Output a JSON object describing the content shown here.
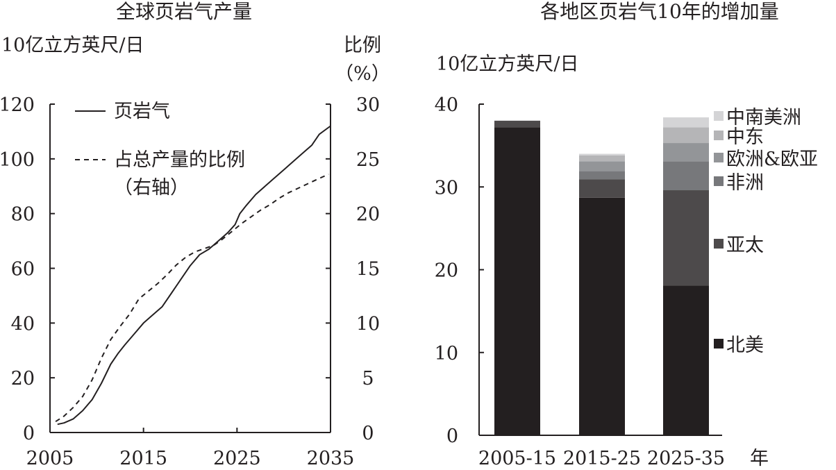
{
  "chart_data": [
    {
      "type": "line",
      "title": "全球页岩气产量",
      "ylabel": "10亿立方英尺/日",
      "y2label_line1": "比例",
      "y2label_line2": "（%）",
      "xlim": [
        2005,
        2035
      ],
      "ylim": [
        0,
        120
      ],
      "y2lim": [
        0,
        30
      ],
      "x_ticks": [
        2005,
        2015,
        2025,
        2035
      ],
      "y_ticks": [
        0,
        20,
        40,
        60,
        80,
        100,
        120
      ],
      "y2_ticks": [
        0,
        5,
        10,
        15,
        20,
        25,
        30
      ],
      "series": [
        {
          "name": "页岩气",
          "axis": "left",
          "style": "solid",
          "x": [
            2005.8,
            2006.5,
            2007.5,
            2008.5,
            2009.5,
            2010.5,
            2011.5,
            2012.3,
            2013,
            2014,
            2015,
            2016,
            2017,
            2018,
            2019,
            2020,
            2021,
            2022,
            2023,
            2024,
            2024.8,
            2025.3,
            2026,
            2027,
            2028,
            2029,
            2030,
            2031,
            2032,
            2033,
            2033.8,
            2035
          ],
          "values": [
            3,
            3.5,
            5,
            8,
            12,
            18,
            25,
            29,
            32,
            36,
            40,
            43,
            46,
            51,
            56,
            61,
            65,
            67,
            70,
            73,
            76,
            80,
            83,
            87,
            90,
            93,
            96,
            99,
            102,
            105,
            109,
            112
          ]
        },
        {
          "name": "占总产量的比例",
          "name_line2": "（右轴）",
          "axis": "right",
          "style": "dashed",
          "x": [
            2005.6,
            2006.5,
            2007.5,
            2008.5,
            2009.5,
            2010.5,
            2011.5,
            2012.5,
            2013.5,
            2014.5,
            2015.5,
            2016.5,
            2017.5,
            2018.5,
            2019.5,
            2020.5,
            2021.5,
            2022.5,
            2023.5,
            2024.5,
            2025.5,
            2026.5,
            2027.5,
            2028.5,
            2029.5,
            2030.5,
            2031.5,
            2032.5,
            2033.5,
            2034.8
          ],
          "values": [
            1,
            1.5,
            2.3,
            3.3,
            4.8,
            6.8,
            8.5,
            9.7,
            10.8,
            12.2,
            12.9,
            13.6,
            14.4,
            15.3,
            16,
            16.5,
            16.8,
            17.1,
            17.7,
            18.4,
            19.1,
            19.7,
            20.3,
            20.8,
            21.4,
            21.9,
            22.3,
            22.7,
            23.1,
            23.6
          ]
        }
      ]
    },
    {
      "type": "bar",
      "stacked": true,
      "title": "各地区页岩气10年的增加量",
      "ylabel": "10亿立方英尺/日",
      "xlabel": "年",
      "ylim": [
        0,
        40
      ],
      "y_ticks": [
        0,
        10,
        20,
        30,
        40
      ],
      "categories": [
        "2005-15",
        "2015-25",
        "2025-35"
      ],
      "series": [
        {
          "name": "北美",
          "color": "#231f20",
          "values": [
            37.2,
            28.7,
            18.1
          ]
        },
        {
          "name": "亚太",
          "color": "#4d4a4b",
          "values": [
            0.8,
            2.2,
            11.5
          ]
        },
        {
          "name": "非洲",
          "color": "#77787b",
          "values": [
            0,
            1.0,
            3.5
          ]
        },
        {
          "name": "欧洲&欧亚",
          "color": "#939598",
          "values": [
            0,
            1.2,
            2.2
          ]
        },
        {
          "name": "中东",
          "color": "#b5b5b7",
          "values": [
            0,
            0.7,
            1.9
          ]
        },
        {
          "name": "中南美洲",
          "color": "#d4d4d6",
          "values": [
            0,
            0.2,
            1.2
          ]
        }
      ]
    }
  ]
}
